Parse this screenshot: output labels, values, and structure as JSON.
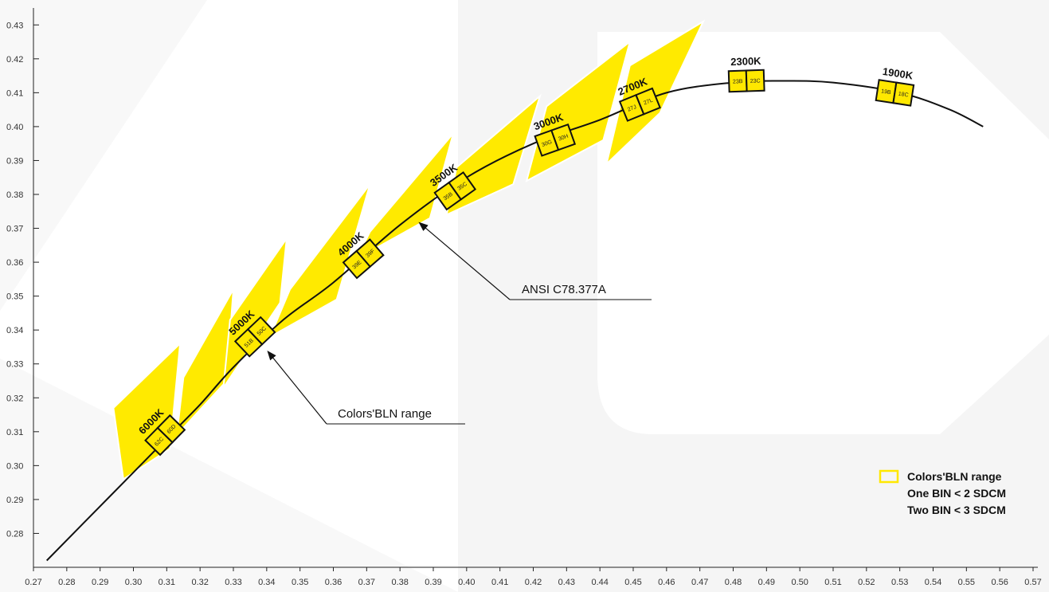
{
  "chart_data": {
    "type": "line",
    "title": "",
    "xlabel": "",
    "ylabel": "",
    "xlim": [
      0.27,
      0.57
    ],
    "ylim": [
      0.27,
      0.435
    ],
    "x_ticks": [
      "0.27",
      "0.28",
      "0.29",
      "0.30",
      "0.31",
      "0.32",
      "0.33",
      "0.34",
      "0.35",
      "0.36",
      "0.37",
      "0.38",
      "0.39",
      "0.40",
      "0.41",
      "0.42",
      "0.43",
      "0.44",
      "0.45",
      "0.46",
      "0.47",
      "0.48",
      "0.49",
      "0.50",
      "0.51",
      "0.52",
      "0.53",
      "0.54",
      "0.55",
      "0.56",
      "0.57"
    ],
    "y_ticks": [
      "0.28",
      "0.29",
      "0.30",
      "0.31",
      "0.32",
      "0.33",
      "0.34",
      "0.35",
      "0.36",
      "0.37",
      "0.38",
      "0.39",
      "0.40",
      "0.41",
      "0.42",
      "0.43"
    ],
    "series": [
      {
        "values": [
          {
            "x": 0.274,
            "y": 0.272
          },
          {
            "x": 0.285,
            "y": 0.283
          },
          {
            "x": 0.3,
            "y": 0.298
          },
          {
            "x": 0.31,
            "y": 0.308
          },
          {
            "x": 0.32,
            "y": 0.318
          },
          {
            "x": 0.33,
            "y": 0.329
          },
          {
            "x": 0.345,
            "y": 0.343
          },
          {
            "x": 0.36,
            "y": 0.354
          },
          {
            "x": 0.38,
            "y": 0.371
          },
          {
            "x": 0.4,
            "y": 0.385
          },
          {
            "x": 0.42,
            "y": 0.395
          },
          {
            "x": 0.44,
            "y": 0.402
          },
          {
            "x": 0.46,
            "y": 0.41
          },
          {
            "x": 0.48,
            "y": 0.413
          },
          {
            "x": 0.495,
            "y": 0.4135
          },
          {
            "x": 0.51,
            "y": 0.413
          },
          {
            "x": 0.53,
            "y": 0.41
          },
          {
            "x": 0.545,
            "y": 0.405
          },
          {
            "x": 0.555,
            "y": 0.4
          }
        ]
      }
    ],
    "ansi_quads": [
      {
        "cct": "6000K",
        "points": [
          [
            0.294,
            0.317
          ],
          [
            0.314,
            0.336
          ],
          [
            0.311,
            0.305
          ],
          [
            0.297,
            0.296
          ]
        ]
      },
      {
        "cct": "5000K",
        "points": [
          [
            0.315,
            0.326
          ],
          [
            0.33,
            0.352
          ],
          [
            0.328,
            0.325
          ],
          [
            0.313,
            0.309
          ]
        ]
      },
      {
        "cct": "5000K",
        "points": [
          [
            0.329,
            0.343
          ],
          [
            0.346,
            0.367
          ],
          [
            0.344,
            0.348
          ],
          [
            0.327,
            0.323
          ]
        ]
      },
      {
        "cct": "4000K",
        "points": [
          [
            0.347,
            0.352
          ],
          [
            0.371,
            0.383
          ],
          [
            0.361,
            0.349
          ],
          [
            0.341,
            0.338
          ]
        ]
      },
      {
        "cct": "3500K",
        "points": [
          [
            0.371,
            0.369
          ],
          [
            0.396,
            0.398
          ],
          [
            0.389,
            0.373
          ],
          [
            0.367,
            0.361
          ]
        ]
      },
      {
        "cct": "3000K",
        "points": [
          [
            0.397,
            0.388
          ],
          [
            0.422,
            0.409
          ],
          [
            0.414,
            0.383
          ],
          [
            0.394,
            0.374
          ]
        ]
      },
      {
        "cct": "2700K",
        "points": [
          [
            0.424,
            0.406
          ],
          [
            0.449,
            0.425
          ],
          [
            0.441,
            0.396
          ],
          [
            0.418,
            0.384
          ]
        ]
      },
      {
        "cct": "2700K",
        "points": [
          [
            0.449,
            0.418
          ],
          [
            0.471,
            0.431
          ],
          [
            0.458,
            0.404
          ],
          [
            0.442,
            0.389
          ]
        ]
      }
    ],
    "bins": [
      {
        "cct": "6000K",
        "label_top": "60D",
        "label_bottom": "62C",
        "x": 0.3095,
        "y": 0.309
      },
      {
        "cct": "5000K",
        "label_top": "50C",
        "label_bottom": "51B",
        "x": 0.3365,
        "y": 0.338
      },
      {
        "cct": "4000K",
        "label_top": "39F",
        "label_bottom": "39E",
        "x": 0.369,
        "y": 0.361
      },
      {
        "cct": "3500K",
        "label_top": "35C",
        "label_bottom": "35B",
        "x": 0.3965,
        "y": 0.381
      },
      {
        "cct": "3000K",
        "label_top": "30H",
        "label_bottom": "30G",
        "x": 0.4265,
        "y": 0.396
      },
      {
        "cct": "2700K",
        "label_top": "27L",
        "label_bottom": "27J",
        "x": 0.452,
        "y": 0.4065
      },
      {
        "cct": "2300K",
        "label_top": "23C",
        "label_bottom": "23B",
        "x": 0.484,
        "y": 0.4135
      },
      {
        "cct": "1900K",
        "label_top": "18C",
        "label_bottom": "19B",
        "x": 0.5285,
        "y": 0.41
      }
    ],
    "annotations": [
      {
        "text": "ANSI C78.377A",
        "arrow_to": [
          0.386,
          0.3715
        ]
      },
      {
        "text": "Colors'BLN range",
        "arrow_to": [
          0.3405,
          0.3335
        ]
      }
    ],
    "legend": {
      "position": "bottom-right",
      "items": [
        "Colors'BLN range",
        "One BIN < 2 SDCM",
        "Two BIN < 3 SDCM"
      ]
    },
    "colors": {
      "ansi_fill": "#FFEA00",
      "bin_fill": "#FFE800",
      "curve": "#111111",
      "background_shape": "#F4F4F4"
    }
  }
}
